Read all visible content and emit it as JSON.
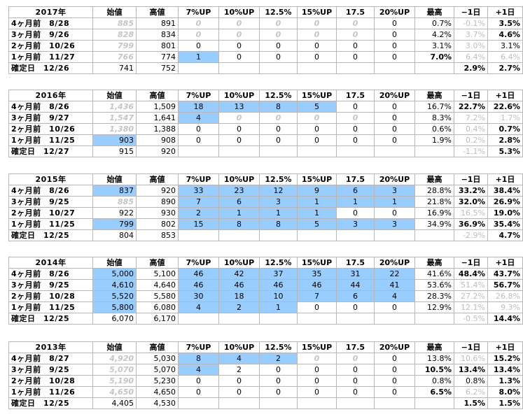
{
  "blocks": [
    {
      "year": "2017年",
      "headers": [
        "始値",
        "高値",
        "7%UP",
        "10%UP",
        "12.5%",
        "15%UP",
        "17.5",
        "20%UP",
        "最高",
        "−1日",
        "+1日"
      ],
      "rows": [
        {
          "label": "4ヶ月前　8/28",
          "open": "885",
          "high": "891",
          "c": [
            "0",
            "0",
            "0",
            "0",
            "0",
            "0"
          ],
          "max": "0.7%",
          "m1": "-0.1%",
          "p1": "3.5%",
          "openStyle": "faint",
          "cStyle": [
            "faint",
            "faint",
            "faint",
            "faint",
            "faint",
            ""
          ],
          "cBlue": [
            false,
            false,
            false,
            false,
            false,
            false
          ],
          "m1Style": "gray",
          "p1Style": "bold",
          "maxBold": false
        },
        {
          "label": "3ヶ月前　9/26",
          "open": "828",
          "high": "834",
          "c": [
            "0",
            "0",
            "0",
            "0",
            "0",
            "0"
          ],
          "max": "4.2%",
          "m1": "3.7%",
          "p1": "4.6%",
          "openStyle": "faint",
          "cStyle": [
            "faint",
            "faint",
            "faint",
            "faint",
            "faint",
            ""
          ],
          "cBlue": [
            false,
            false,
            false,
            false,
            false,
            false
          ],
          "m1Style": "gray",
          "p1Style": "bold",
          "maxBold": false
        },
        {
          "label": "2ヶ月前　10/26",
          "open": "799",
          "high": "801",
          "c": [
            "0",
            "0",
            "0",
            "0",
            "0",
            "0"
          ],
          "max": "3.1%",
          "m1": "3.0%",
          "p1": "3.1%",
          "openStyle": "faint",
          "cStyle": [
            "",
            "",
            "",
            "",
            "",
            ""
          ],
          "cBlue": [
            false,
            false,
            false,
            false,
            false,
            false
          ],
          "m1Style": "gray",
          "p1Style": "",
          "maxBold": false
        },
        {
          "label": "1ヶ月前　11/27",
          "open": "766",
          "high": "774",
          "c": [
            "1",
            "0",
            "0",
            "0",
            "0",
            "0"
          ],
          "max": "7.0%",
          "m1": "6.4%",
          "p1": "6.4%",
          "openStyle": "faint",
          "cStyle": [
            "",
            "",
            "",
            "",
            "",
            ""
          ],
          "cBlue": [
            true,
            false,
            false,
            false,
            false,
            false
          ],
          "m1Style": "gray",
          "p1Style": "gray",
          "maxBold": true
        },
        {
          "label": "確定日　12/26",
          "open": "741",
          "high": "752",
          "c": [
            "",
            "",
            "",
            "",
            "",
            ""
          ],
          "max": "",
          "m1": "2.9%",
          "p1": "2.7%",
          "openStyle": "",
          "cStyle": [
            "",
            "",
            "",
            "",
            "",
            ""
          ],
          "cBlue": [
            false,
            false,
            false,
            false,
            false,
            false
          ],
          "m1Style": "bold",
          "p1Style": "bold",
          "maxBold": false
        }
      ]
    },
    {
      "year": "2016年",
      "headers": [
        "始値",
        "高値",
        "7%UP",
        "10%UP",
        "12.5%",
        "15%UP",
        "17.5",
        "20%UP",
        "最高",
        "−1日",
        "+1日"
      ],
      "rows": [
        {
          "label": "4ヶ月前　8/26",
          "open": "1,436",
          "high": "1,509",
          "c": [
            "18",
            "13",
            "8",
            "5",
            "0",
            "0"
          ],
          "max": "16.7%",
          "m1": "22.7%",
          "p1": "22.6%",
          "openStyle": "faint",
          "cStyle": [
            "",
            "",
            "",
            "",
            "",
            ""
          ],
          "cBlue": [
            true,
            true,
            true,
            true,
            false,
            false
          ],
          "m1Style": "bold",
          "p1Style": "bold",
          "maxBold": false
        },
        {
          "label": "3ヶ月前　9/27",
          "open": "1,547",
          "high": "1,641",
          "c": [
            "4",
            "0",
            "0",
            "0",
            "0",
            "0"
          ],
          "max": "8.3%",
          "m1": "7.2%",
          "p1": "1.7%",
          "openStyle": "faint",
          "cStyle": [
            "",
            "faint",
            "faint",
            "faint",
            "faint",
            ""
          ],
          "cBlue": [
            true,
            false,
            false,
            false,
            false,
            false
          ],
          "m1Style": "gray",
          "p1Style": "gray",
          "maxBold": false
        },
        {
          "label": "2ヶ月前　10/26",
          "open": "1,380",
          "high": "1,388",
          "c": [
            "0",
            "0",
            "0",
            "0",
            "0",
            "0"
          ],
          "max": "0.6%",
          "m1": "0.4%",
          "p1": "0.7%",
          "openStyle": "faint",
          "cStyle": [
            "",
            "",
            "",
            "",
            "",
            ""
          ],
          "cBlue": [
            false,
            false,
            false,
            false,
            false,
            false
          ],
          "m1Style": "gray",
          "p1Style": "bold",
          "maxBold": false
        },
        {
          "label": "1ヶ月前　11/25",
          "open": "903",
          "high": "908",
          "c": [
            "0",
            "0",
            "0",
            "0",
            "0",
            "0"
          ],
          "max": "1.9%",
          "m1": "0.2%",
          "p1": "2.8%",
          "openStyle": "blue",
          "cStyle": [
            "",
            "",
            "",
            "",
            "",
            ""
          ],
          "cBlue": [
            false,
            false,
            false,
            false,
            false,
            false
          ],
          "m1Style": "gray",
          "p1Style": "bold",
          "maxBold": false
        },
        {
          "label": "確定日　12/27",
          "open": "915",
          "high": "920",
          "c": [
            "",
            "",
            "",
            "",
            "",
            ""
          ],
          "max": "",
          "m1": "-1.1%",
          "p1": "5.3%",
          "openStyle": "",
          "cStyle": [
            "",
            "",
            "",
            "",
            "",
            ""
          ],
          "cBlue": [
            false,
            false,
            false,
            false,
            false,
            false
          ],
          "m1Style": "gray",
          "p1Style": "bold",
          "maxBold": false
        }
      ]
    },
    {
      "year": "2015年",
      "headers": [
        "始値",
        "高値",
        "7%UP",
        "10%UP",
        "12.5%",
        "15%UP",
        "17.5",
        "20%UP",
        "最高",
        "−1日",
        "+1日"
      ],
      "rows": [
        {
          "label": "4ヶ月前　8/26",
          "open": "837",
          "high": "920",
          "c": [
            "33",
            "23",
            "12",
            "9",
            "6",
            "3"
          ],
          "max": "28.8%",
          "m1": "33.2%",
          "p1": "38.4%",
          "openStyle": "blue",
          "cStyle": [
            "",
            "",
            "",
            "",
            "",
            ""
          ],
          "cBlue": [
            true,
            true,
            true,
            true,
            true,
            true
          ],
          "m1Style": "bold",
          "p1Style": "bold",
          "maxBold": false
        },
        {
          "label": "3ヶ月前　9/25",
          "open": "885",
          "high": "890",
          "c": [
            "7",
            "6",
            "3",
            "1",
            "1",
            "1"
          ],
          "max": "21.8%",
          "m1": "32.0%",
          "p1": "26.9%",
          "openStyle": "faint",
          "cStyle": [
            "",
            "",
            "",
            "",
            "",
            ""
          ],
          "cBlue": [
            true,
            true,
            true,
            true,
            true,
            true
          ],
          "m1Style": "bold",
          "p1Style": "bold",
          "maxBold": false
        },
        {
          "label": "2ヶ月前　10/27",
          "open": "922",
          "high": "930",
          "c": [
            "2",
            "1",
            "1",
            "1",
            "0",
            "0"
          ],
          "max": "16.9%",
          "m1": "16.5%",
          "p1": "19.0%",
          "openStyle": "",
          "cStyle": [
            "",
            "",
            "",
            "",
            "",
            ""
          ],
          "cBlue": [
            true,
            true,
            true,
            true,
            false,
            false
          ],
          "m1Style": "gray",
          "p1Style": "bold",
          "maxBold": false
        },
        {
          "label": "1ヶ月前　11/25",
          "open": "799",
          "high": "802",
          "c": [
            "15",
            "8",
            "8",
            "5",
            "3",
            "3"
          ],
          "max": "34.9%",
          "m1": "36.9%",
          "p1": "35.4%",
          "openStyle": "blue",
          "cStyle": [
            "",
            "",
            "",
            "",
            "",
            ""
          ],
          "cBlue": [
            true,
            true,
            true,
            true,
            true,
            true
          ],
          "m1Style": "bold",
          "p1Style": "bold",
          "maxBold": false
        },
        {
          "label": "確定日　12/25",
          "open": "804",
          "high": "853",
          "c": [
            "",
            "",
            "",
            "",
            "",
            ""
          ],
          "max": "",
          "m1": "-2.9%",
          "p1": "4.7%",
          "openStyle": "",
          "cStyle": [
            "",
            "",
            "",
            "",
            "",
            ""
          ],
          "cBlue": [
            false,
            false,
            false,
            false,
            false,
            false
          ],
          "m1Style": "gray",
          "p1Style": "bold",
          "maxBold": false
        }
      ]
    },
    {
      "year": "2014年",
      "headers": [
        "始値",
        "高値",
        "7%UP",
        "10%UP",
        "12.5%",
        "15%UP",
        "17.5",
        "20%UP",
        "最高",
        "−1日",
        "+1日"
      ],
      "rows": [
        {
          "label": "4ヶ月前　8/26",
          "open": "5,000",
          "high": "5,100",
          "c": [
            "46",
            "42",
            "37",
            "35",
            "31",
            "22"
          ],
          "max": "41.6%",
          "m1": "48.4%",
          "p1": "43.7%",
          "openStyle": "blue",
          "cStyle": [
            "",
            "",
            "",
            "",
            "",
            ""
          ],
          "cBlue": [
            true,
            true,
            true,
            true,
            true,
            true
          ],
          "m1Style": "bold",
          "p1Style": "bold",
          "maxBold": false
        },
        {
          "label": "3ヶ月前　9/25",
          "open": "4,610",
          "high": "4,640",
          "c": [
            "46",
            "46",
            "46",
            "46",
            "44",
            "41"
          ],
          "max": "53.6%",
          "m1": "51.4%",
          "p1": "56.7%",
          "openStyle": "blue",
          "cStyle": [
            "",
            "",
            "",
            "",
            "",
            ""
          ],
          "cBlue": [
            true,
            true,
            true,
            true,
            true,
            true
          ],
          "m1Style": "gray",
          "p1Style": "bold",
          "maxBold": false
        },
        {
          "label": "2ヶ月前　10/28",
          "open": "5,520",
          "high": "5,580",
          "c": [
            "30",
            "18",
            "10",
            "7",
            "6",
            "4"
          ],
          "max": "28.3%",
          "m1": "27.2%",
          "p1": "26.8%",
          "openStyle": "blue",
          "cStyle": [
            "",
            "",
            "",
            "",
            "",
            ""
          ],
          "cBlue": [
            true,
            true,
            true,
            true,
            true,
            true
          ],
          "m1Style": "gray",
          "p1Style": "gray",
          "maxBold": false
        },
        {
          "label": "1ヶ月前　11/25",
          "open": "5,800",
          "high": "6,080",
          "c": [
            "4",
            "2",
            "1",
            "0",
            "0",
            "0"
          ],
          "max": "12.9%",
          "m1": "12.1%",
          "p1": "9.3%",
          "openStyle": "blue",
          "cStyle": [
            "",
            "",
            "",
            "",
            "",
            ""
          ],
          "cBlue": [
            true,
            true,
            true,
            false,
            false,
            false
          ],
          "m1Style": "gray",
          "p1Style": "gray",
          "maxBold": false
        },
        {
          "label": "確定日　12/25",
          "open": "6,070",
          "high": "6,170",
          "c": [
            "",
            "",
            "",
            "",
            "",
            ""
          ],
          "max": "",
          "m1": "-0.5%",
          "p1": "14.4%",
          "openStyle": "",
          "cStyle": [
            "",
            "",
            "",
            "",
            "",
            ""
          ],
          "cBlue": [
            false,
            false,
            false,
            false,
            false,
            false
          ],
          "m1Style": "gray",
          "p1Style": "bold",
          "maxBold": false
        }
      ]
    },
    {
      "year": "2013年",
      "headers": [
        "始値",
        "高値",
        "7%UP",
        "10%UP",
        "12.5%",
        "15%UP",
        "17.5",
        "20%UP",
        "最高",
        "−1日",
        "+1日"
      ],
      "rows": [
        {
          "label": "4ヶ月前　8/27",
          "open": "4,920",
          "high": "5,030",
          "c": [
            "8",
            "4",
            "2",
            "0",
            "0",
            "0"
          ],
          "max": "13.8%",
          "m1": "10.6%",
          "p1": "15.2%",
          "openStyle": "faint",
          "cStyle": [
            "",
            "",
            "",
            "faint",
            "faint",
            ""
          ],
          "cBlue": [
            true,
            true,
            true,
            false,
            false,
            false
          ],
          "m1Style": "gray",
          "p1Style": "bold",
          "maxBold": false
        },
        {
          "label": "3ヶ月前　9/25",
          "open": "5,070",
          "high": "5,070",
          "c": [
            "4",
            "2",
            "0",
            "0",
            "0",
            "0"
          ],
          "max": "10.5%",
          "m1": "13.4%",
          "p1": "13.4%",
          "openStyle": "faint",
          "cStyle": [
            "",
            "",
            "",
            "",
            "",
            ""
          ],
          "cBlue": [
            true,
            false,
            false,
            false,
            false,
            false
          ],
          "m1Style": "bold",
          "p1Style": "bold",
          "maxBold": true
        },
        {
          "label": "2ヶ月前　10/28",
          "open": "5,190",
          "high": "5,230",
          "c": [
            "0",
            "0",
            "0",
            "0",
            "0",
            "0"
          ],
          "max": "0.8%",
          "m1": "0.8%",
          "p1": "1.3%",
          "openStyle": "faint",
          "cStyle": [
            "",
            "",
            "",
            "",
            "",
            ""
          ],
          "cBlue": [
            false,
            false,
            false,
            false,
            false,
            false
          ],
          "m1Style": "",
          "p1Style": "bold",
          "maxBold": false
        },
        {
          "label": "1ヶ月前　11/26",
          "open": "4,650",
          "high": "4,650",
          "c": [
            "0",
            "0",
            "0",
            "0",
            "0",
            "0"
          ],
          "max": "6.5%",
          "m1": "6.2%",
          "p1": "8.0%",
          "openStyle": "faint",
          "cStyle": [
            "",
            "",
            "",
            "",
            "",
            ""
          ],
          "cBlue": [
            false,
            false,
            false,
            false,
            false,
            false
          ],
          "m1Style": "gray",
          "p1Style": "bold",
          "maxBold": true
        },
        {
          "label": "確定日　12/25",
          "open": "4,405",
          "high": "4,530",
          "c": [
            "",
            "",
            "",
            "",
            "",
            ""
          ],
          "max": "",
          "m1": "1.5%",
          "p1": "1.5%",
          "openStyle": "",
          "cStyle": [
            "",
            "",
            "",
            "",
            "",
            ""
          ],
          "cBlue": [
            false,
            false,
            false,
            false,
            false,
            false
          ],
          "m1Style": "bold",
          "p1Style": "bold",
          "maxBold": false
        }
      ]
    }
  ]
}
